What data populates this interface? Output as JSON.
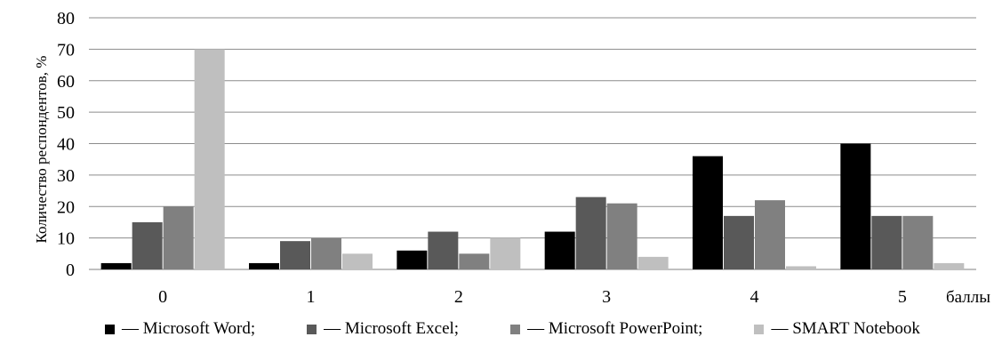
{
  "chart_data": {
    "type": "bar",
    "title": "",
    "xlabel": "",
    "x_unit_label": "баллы",
    "ylabel": "Количество респондентов, %",
    "ylim": [
      0,
      80
    ],
    "yticks": [
      0,
      10,
      20,
      30,
      40,
      50,
      60,
      70,
      80
    ],
    "grid": true,
    "categories": [
      "0",
      "1",
      "2",
      "3",
      "4",
      "5"
    ],
    "series": [
      {
        "name": "— Microsoft Word;",
        "color": "#000000",
        "values": [
          2,
          2,
          6,
          12,
          36,
          40
        ]
      },
      {
        "name": "— Microsoft Excel;",
        "color": "#595959",
        "values": [
          15,
          9,
          12,
          23,
          17,
          17
        ]
      },
      {
        "name": "— Microsoft PowerPoint;",
        "color": "#808080",
        "values": [
          20,
          10,
          5,
          21,
          22,
          17
        ]
      },
      {
        "name": "— SMART Notebook",
        "color": "#bfbfbf",
        "values": [
          70,
          5,
          10,
          4,
          1,
          2
        ]
      }
    ],
    "legend_position": "bottom"
  }
}
